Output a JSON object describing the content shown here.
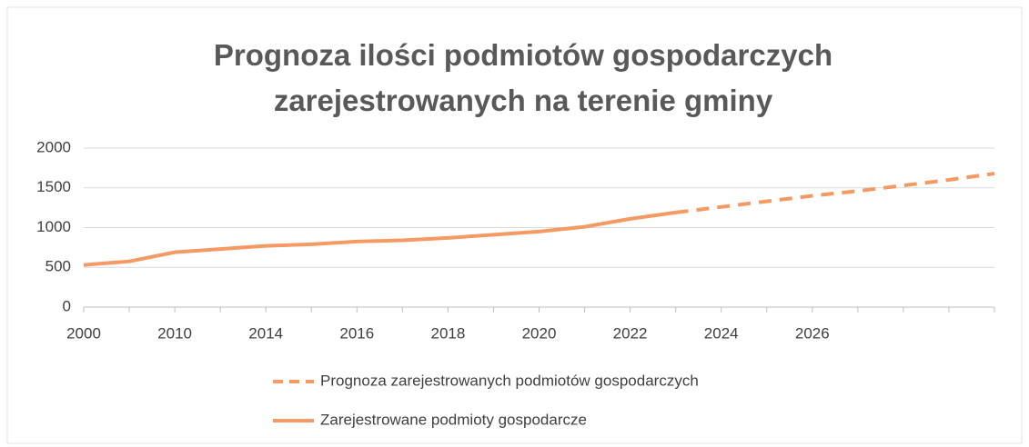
{
  "chart_data": {
    "type": "line",
    "title": "Prognoza ilości podmiotów gospodarczych zarejestrowanych na terenie gminy",
    "categories": [
      "2000",
      null,
      "2010",
      null,
      "2014",
      null,
      "2016",
      null,
      "2018",
      null,
      "2020",
      null,
      "2022",
      null,
      "2024",
      null,
      "2026",
      null,
      null,
      null,
      null
    ],
    "series": [
      {
        "name": "Prognoza zarejestrowanych podmiotów gospodarczych",
        "color": "#f59a62",
        "dashed": true,
        "values": [
          null,
          null,
          null,
          null,
          null,
          null,
          null,
          null,
          null,
          null,
          null,
          null,
          null,
          1190,
          1260,
          1330,
          1400,
          1460,
          1530,
          1600,
          1680
        ]
      },
      {
        "name": "Zarejestrowane podmioty gospodarcze",
        "color": "#f59a62",
        "dashed": false,
        "values": [
          530,
          575,
          690,
          730,
          770,
          790,
          825,
          840,
          870,
          910,
          950,
          1010,
          1110,
          1190,
          null,
          null,
          null,
          null,
          null,
          null,
          null
        ]
      }
    ],
    "ylim": [
      0,
      2000
    ],
    "yticks": [
      0,
      500,
      1000,
      1500,
      2000
    ],
    "grid": true,
    "legend": "bottom"
  }
}
